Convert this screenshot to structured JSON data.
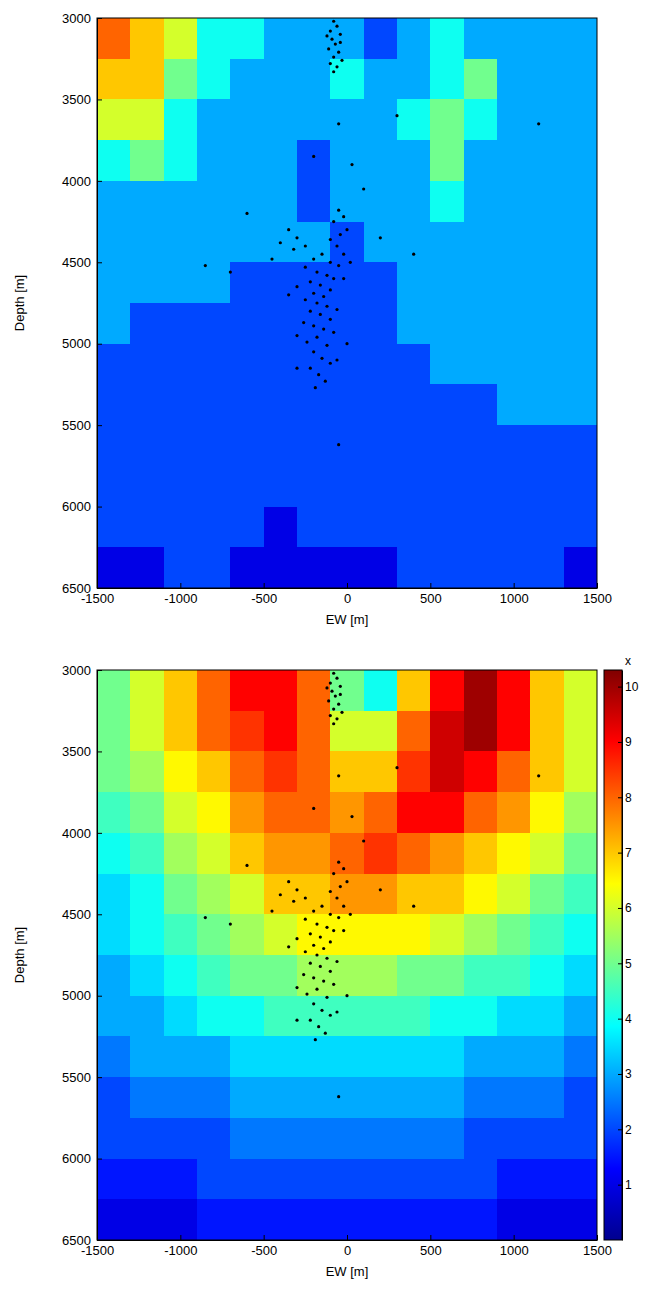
{
  "chart_data": [
    {
      "type": "heatmap",
      "x_label": "EW [m]",
      "y_label": "Depth [m]",
      "xlim": [
        -1500,
        1500
      ],
      "ylim": [
        3000,
        6500
      ],
      "xticks": [
        -1500,
        -1000,
        -500,
        0,
        500,
        1000,
        1500
      ],
      "yticks": [
        3000,
        3500,
        4000,
        4500,
        5000,
        5500,
        6000,
        6500
      ],
      "zlim": [
        0,
        10.3
      ],
      "x_edges": [
        -1500,
        -1300,
        -1100,
        -900,
        -700,
        -500,
        -300,
        -100,
        100,
        300,
        500,
        700,
        900,
        1100,
        1300,
        1500
      ],
      "y_edges": [
        3000,
        3250,
        3500,
        3750,
        4000,
        4250,
        4500,
        4750,
        5000,
        5250,
        5500,
        5750,
        6000,
        6250,
        6500
      ],
      "cells": [
        [
          8,
          7,
          6,
          4,
          4,
          3,
          3,
          3,
          2,
          3,
          4,
          3,
          3,
          3,
          3
        ],
        [
          7,
          7,
          5,
          4,
          3,
          3,
          3,
          4,
          3,
          3,
          4,
          5,
          3,
          3,
          3
        ],
        [
          6,
          6,
          4,
          3,
          3,
          3,
          3,
          3,
          3,
          4,
          5,
          4,
          3,
          3,
          3
        ],
        [
          4,
          5,
          4,
          3,
          3,
          3,
          2,
          3,
          3,
          3,
          5,
          3,
          3,
          3,
          3
        ],
        [
          3,
          3,
          3,
          3,
          3,
          3,
          2,
          3,
          3,
          3,
          4,
          3,
          3,
          3,
          3
        ],
        [
          3,
          3,
          3,
          3,
          3,
          3,
          3,
          2,
          3,
          3,
          3,
          3,
          3,
          3,
          3
        ],
        [
          3,
          3,
          3,
          3,
          2,
          2,
          2,
          2,
          2,
          3,
          3,
          3,
          3,
          3,
          3
        ],
        [
          3,
          2,
          2,
          2,
          2,
          2,
          2,
          2,
          2,
          3,
          3,
          3,
          3,
          3,
          3
        ],
        [
          2,
          2,
          2,
          2,
          2,
          2,
          2,
          2,
          2,
          2,
          3,
          3,
          3,
          3,
          3
        ],
        [
          2,
          2,
          2,
          2,
          2,
          2,
          2,
          2,
          2,
          2,
          2,
          2,
          3,
          3,
          3
        ],
        [
          2,
          2,
          2,
          2,
          2,
          2,
          2,
          2,
          2,
          2,
          2,
          2,
          2,
          2,
          2
        ],
        [
          2,
          2,
          2,
          2,
          2,
          2,
          2,
          2,
          2,
          2,
          2,
          2,
          2,
          2,
          2
        ],
        [
          2,
          2,
          2,
          2,
          2,
          1,
          2,
          2,
          2,
          2,
          2,
          2,
          2,
          2,
          2
        ],
        [
          1,
          1,
          2,
          2,
          1,
          1,
          1,
          1,
          1,
          2,
          2,
          2,
          2,
          2,
          1
        ]
      ],
      "series": [
        {
          "type": "scatter",
          "color": "#000000",
          "marker": "circle",
          "x": [
            -80,
            -60,
            -100,
            -40,
            -90,
            -70,
            -110,
            -50,
            -80,
            -30,
            -100,
            -60,
            -80,
            -40,
            -120,
            -50,
            30,
            300,
            -200,
            100,
            -600,
            -50,
            -20,
            -80,
            0,
            -40,
            -100,
            -350,
            -300,
            -400,
            -250,
            -320,
            -60,
            -20,
            -150,
            -200,
            -100,
            -50,
            -250,
            -180,
            -120,
            -80,
            -220,
            -160,
            -300,
            -100,
            -200,
            -140,
            -250,
            -180,
            -120,
            -60,
            -220,
            -160,
            -100,
            -260,
            -200,
            -140,
            -80,
            -180,
            -240,
            -120,
            -200,
            -150,
            -100,
            -220,
            -170,
            -130,
            -190,
            -60,
            -300,
            -350,
            -20,
            20,
            -700,
            -450,
            200,
            400,
            -300,
            0,
            -850,
            1150,
            -50
          ],
          "y": [
            3020,
            3050,
            3080,
            3100,
            3130,
            3160,
            3190,
            3210,
            3240,
            3260,
            3280,
            3300,
            3330,
            3150,
            3110,
            3650,
            3900,
            3600,
            3850,
            4050,
            4200,
            4180,
            4220,
            4250,
            4300,
            4330,
            4360,
            4300,
            4350,
            4380,
            4400,
            4420,
            4400,
            4450,
            4450,
            4480,
            4500,
            4520,
            4530,
            4560,
            4580,
            4600,
            4620,
            4640,
            4650,
            4670,
            4690,
            4710,
            4730,
            4750,
            4770,
            4790,
            4800,
            4820,
            4850,
            4870,
            4890,
            4910,
            4930,
            4960,
            4990,
            5010,
            5050,
            5090,
            5120,
            5150,
            5190,
            5230,
            5270,
            5100,
            4950,
            4700,
            4600,
            4500,
            4560,
            4480,
            4350,
            4450,
            5150,
            5000,
            4520,
            3650,
            5620
          ]
        }
      ]
    },
    {
      "type": "heatmap",
      "x_label": "EW [m]",
      "y_label": "Depth [m]",
      "xlim": [
        -1500,
        1500
      ],
      "ylim": [
        3000,
        6500
      ],
      "xticks": [
        -1500,
        -1000,
        -500,
        0,
        500,
        1000,
        1500
      ],
      "yticks": [
        3000,
        3500,
        4000,
        4500,
        5000,
        5500,
        6000,
        6500
      ],
      "zlim": [
        0,
        10.3
      ],
      "colorbar": {
        "label": "x",
        "ticks": [
          1,
          2,
          3,
          4,
          5,
          6,
          7,
          8,
          9,
          10
        ]
      },
      "x_edges": [
        -1500,
        -1300,
        -1100,
        -900,
        -700,
        -500,
        -300,
        -100,
        100,
        300,
        500,
        700,
        900,
        1100,
        1300,
        1500
      ],
      "y_edges": [
        3000,
        3250,
        3500,
        3750,
        4000,
        4250,
        4500,
        4750,
        5000,
        5250,
        5500,
        5750,
        6000,
        6250,
        6500
      ],
      "cells": [
        [
          5,
          6,
          7,
          8,
          9,
          9,
          8,
          5,
          4,
          7,
          9,
          10,
          9,
          7,
          6
        ],
        [
          5,
          6,
          7,
          8,
          8.5,
          9,
          8,
          6,
          6,
          8,
          9.5,
          10,
          9,
          7,
          6
        ],
        [
          5,
          5.5,
          6.5,
          7,
          8,
          8.5,
          8,
          7,
          7,
          8.5,
          9.5,
          9,
          8,
          7,
          6
        ],
        [
          4.5,
          5,
          6,
          6.5,
          7.5,
          8,
          8,
          7.5,
          8,
          9,
          9,
          8,
          7.5,
          6.5,
          5.5
        ],
        [
          4,
          4.5,
          5.5,
          6,
          7,
          7.5,
          7.5,
          8,
          8.5,
          8,
          7.5,
          7,
          6.5,
          6,
          5
        ],
        [
          3.5,
          4,
          5,
          5.5,
          6,
          7,
          7,
          7.5,
          7.5,
          7,
          7,
          6.5,
          6,
          5,
          4.5
        ],
        [
          3.5,
          4,
          4.5,
          5,
          5.5,
          6,
          6.5,
          6.5,
          6.5,
          6.5,
          6,
          5.5,
          5,
          4.5,
          4
        ],
        [
          3,
          3.5,
          4,
          4.5,
          5,
          5,
          5.5,
          5.5,
          5.5,
          5,
          5,
          4.5,
          4.5,
          4,
          3.5
        ],
        [
          3,
          3,
          3.5,
          4,
          4,
          4.5,
          4.5,
          4.5,
          4.5,
          4.5,
          4,
          4,
          3.5,
          3.5,
          3
        ],
        [
          2.5,
          3,
          3,
          3,
          3.5,
          3.5,
          3.5,
          3.5,
          3.5,
          3.5,
          3.5,
          3,
          3,
          3,
          2.5
        ],
        [
          2,
          2.5,
          2.5,
          2.5,
          3,
          3,
          3,
          3,
          3,
          3,
          3,
          2.5,
          2.5,
          2.5,
          2
        ],
        [
          2,
          2,
          2,
          2,
          2.5,
          2.5,
          2.5,
          2.5,
          2.5,
          2.5,
          2.5,
          2,
          2,
          2,
          2
        ],
        [
          1.5,
          1.5,
          1.5,
          2,
          2,
          2,
          2,
          2,
          2,
          2,
          2,
          2,
          1.5,
          1.5,
          1.5
        ],
        [
          1,
          1,
          1,
          1.5,
          1.5,
          1.5,
          1.5,
          1.5,
          1.5,
          1.5,
          1.5,
          1.5,
          1,
          1,
          1
        ]
      ],
      "series": [
        {
          "type": "scatter",
          "color": "#000000",
          "marker": "circle",
          "x": [
            -80,
            -60,
            -100,
            -40,
            -90,
            -70,
            -110,
            -50,
            -80,
            -30,
            -100,
            -60,
            -80,
            -40,
            -120,
            -50,
            30,
            300,
            -200,
            100,
            -600,
            -50,
            -20,
            -80,
            0,
            -40,
            -100,
            -350,
            -300,
            -400,
            -250,
            -320,
            -60,
            -20,
            -150,
            -200,
            -100,
            -50,
            -250,
            -180,
            -120,
            -80,
            -220,
            -160,
            -300,
            -100,
            -200,
            -140,
            -250,
            -180,
            -120,
            -60,
            -220,
            -160,
            -100,
            -260,
            -200,
            -140,
            -80,
            -180,
            -240,
            -120,
            -200,
            -150,
            -100,
            -220,
            -170,
            -130,
            -190,
            -60,
            -300,
            -350,
            -20,
            20,
            -700,
            -450,
            200,
            400,
            -300,
            0,
            -850,
            1150,
            -50
          ],
          "y": [
            3020,
            3050,
            3080,
            3100,
            3130,
            3160,
            3190,
            3210,
            3240,
            3260,
            3280,
            3300,
            3330,
            3150,
            3110,
            3650,
            3900,
            3600,
            3850,
            4050,
            4200,
            4180,
            4220,
            4250,
            4300,
            4330,
            4360,
            4300,
            4350,
            4380,
            4400,
            4420,
            4400,
            4450,
            4450,
            4480,
            4500,
            4520,
            4530,
            4560,
            4580,
            4600,
            4620,
            4640,
            4650,
            4670,
            4690,
            4710,
            4730,
            4750,
            4770,
            4790,
            4800,
            4820,
            4850,
            4870,
            4890,
            4910,
            4930,
            4960,
            4990,
            5010,
            5050,
            5090,
            5120,
            5150,
            5190,
            5230,
            5270,
            5100,
            4950,
            4700,
            4600,
            4500,
            4560,
            4480,
            4350,
            4450,
            5150,
            5000,
            4520,
            3650,
            5620
          ]
        }
      ]
    }
  ]
}
